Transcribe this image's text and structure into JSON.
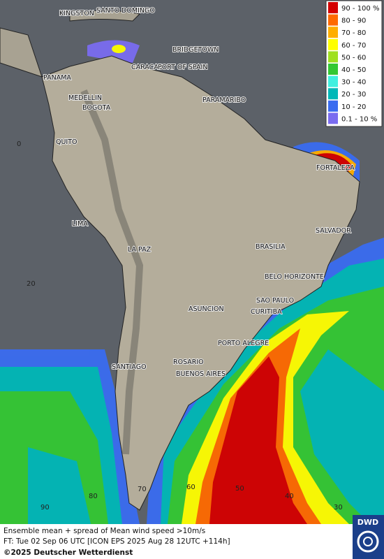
{
  "map": {
    "cities": [
      "KINGSTON",
      "SANTO DOMINGO",
      "BRIDGETOWN",
      "PANAMA",
      "CARACAS",
      "PORT OF SPAIN",
      "MEDELLIN",
      "BOGOTA",
      "PARAMARIBO",
      "QUITO",
      "FORTALEZA",
      "LIMA",
      "SALVADOR",
      "LA PAZ",
      "BRASILIA",
      "BELO HORIZONTE",
      "ASUNCION",
      "SAO PAULO",
      "CURITIBA",
      "PORTO ALEGRE",
      "ROSARIO",
      "SANTIAGO",
      "BUENOS AIRES"
    ],
    "latitude_labels": [
      "0",
      "20"
    ],
    "longitude_labels": [
      "90",
      "80",
      "70",
      "60",
      "50",
      "40",
      "30"
    ]
  },
  "legend": [
    {
      "label": "90 - 100 %",
      "color": "#d40000"
    },
    {
      "label": "80 - 90",
      "color": "#ff6a00"
    },
    {
      "label": "70 - 80",
      "color": "#ffae00"
    },
    {
      "label": "60 - 70",
      "color": "#ffff00"
    },
    {
      "label": "50 - 60",
      "color": "#a0e020"
    },
    {
      "label": "40 - 50",
      "color": "#33c833"
    },
    {
      "label": "30 - 40",
      "color": "#40f0e0"
    },
    {
      "label": "20 - 30",
      "color": "#00b8b8"
    },
    {
      "label": "10 - 20",
      "color": "#3a6cf0"
    },
    {
      "label": "0.1 - 10 %",
      "color": "#7a6cf0"
    }
  ],
  "footer": {
    "line1": "Ensemble mean + spread of Mean wind speed >10m/s",
    "line2": "FT: Tue 02 Sep 06 UTC [ICON EPS 2025 Aug 28 12UTC +114h]",
    "line3": "©2025 Deutscher Wetterdienst",
    "logo": "DWD"
  }
}
